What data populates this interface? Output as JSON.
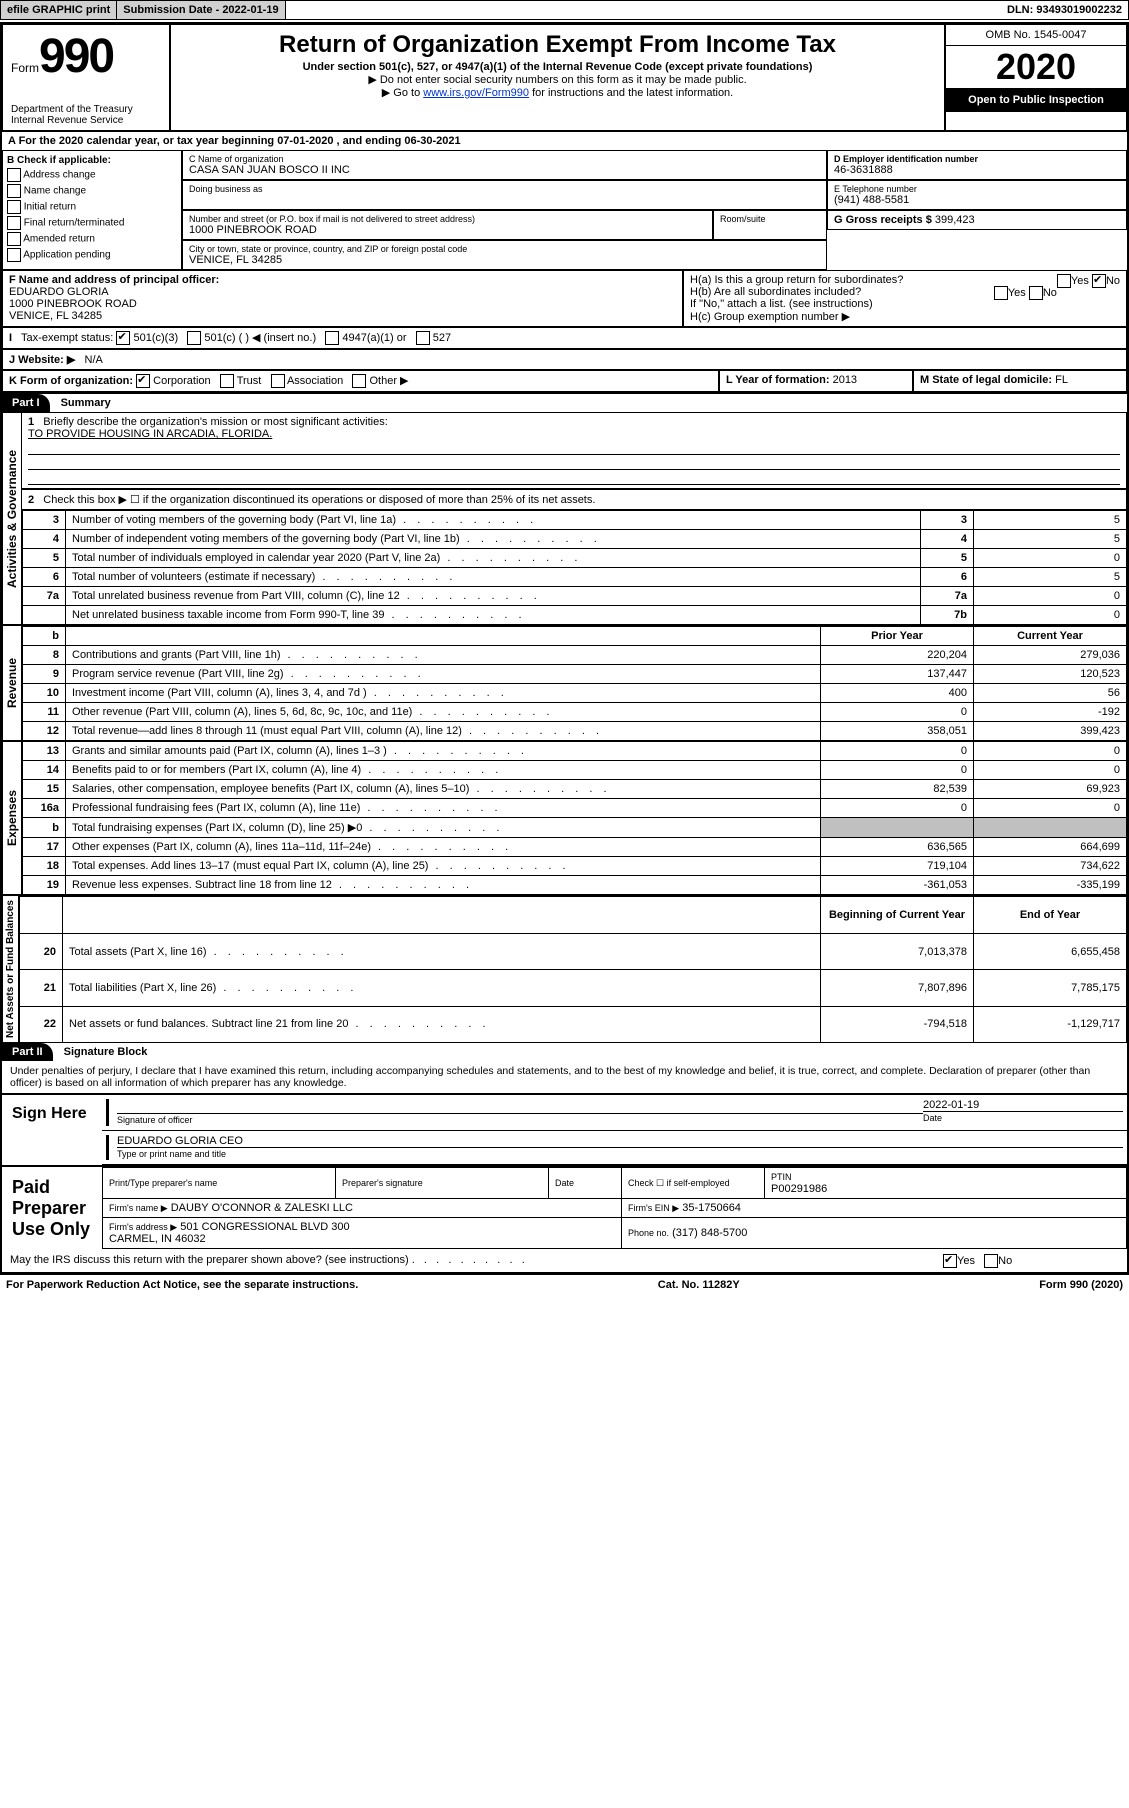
{
  "topbar": {
    "efile": "efile GRAPHIC print",
    "submission": "Submission Date - 2022-01-19",
    "dln": "DLN: 93493019002232"
  },
  "header": {
    "form_label": "Form",
    "form_num": "990",
    "title": "Return of Organization Exempt From Income Tax",
    "subtitle": "Under section 501(c), 527, or 4947(a)(1) of the Internal Revenue Code (except private foundations)",
    "note1": "▶ Do not enter social security numbers on this form as it may be made public.",
    "note2_pre": "▶ Go to ",
    "note2_link": "www.irs.gov/Form990",
    "note2_post": " for instructions and the latest information.",
    "dept": "Department of the Treasury\nInternal Revenue Service",
    "omb": "OMB No. 1545-0047",
    "year": "2020",
    "open": "Open to Public Inspection"
  },
  "sectionA": "A For the 2020 calendar year, or tax year beginning 07-01-2020    , and ending 06-30-2021",
  "checkif": {
    "label": "B Check if applicable:",
    "items": [
      "Address change",
      "Name change",
      "Initial return",
      "Final return/terminated",
      "Amended return",
      "Application pending"
    ]
  },
  "org": {
    "name_label": "C Name of organization",
    "name": "CASA SAN JUAN BOSCO II INC",
    "dba_label": "Doing business as",
    "addr_label": "Number and street (or P.O. box if mail is not delivered to street address)",
    "addr": "1000 PINEBROOK ROAD",
    "room_label": "Room/suite",
    "city_label": "City or town, state or province, country, and ZIP or foreign postal code",
    "city": "VENICE, FL  34285"
  },
  "ein": {
    "label": "D Employer identification number",
    "value": "46-3631888"
  },
  "phone": {
    "label": "E Telephone number",
    "value": "(941) 488-5581"
  },
  "gross": {
    "label": "G Gross receipts $",
    "value": "399,423"
  },
  "officer": {
    "label": "F  Name and address of principal officer:",
    "name": "EDUARDO GLORIA",
    "addr": "1000 PINEBROOK ROAD\nVENICE, FL  34285"
  },
  "groupH": {
    "ha": "H(a)  Is this a group return for subordinates?",
    "hb": "H(b)  Are all subordinates included?",
    "hb_note": "If \"No,\" attach a list. (see instructions)",
    "hc": "H(c)  Group exemption number ▶",
    "yes": "Yes",
    "no": "No"
  },
  "taxexempt": {
    "label": "Tax-exempt status:",
    "o1": "501(c)(3)",
    "o2": "501(c) (   ) ◀ (insert no.)",
    "o3": "4947(a)(1) or",
    "o4": "527"
  },
  "website": {
    "label": "J   Website: ▶",
    "value": "N/A"
  },
  "formorg": {
    "label": "K Form of organization:",
    "corp": "Corporation",
    "trust": "Trust",
    "assoc": "Association",
    "other": "Other ▶"
  },
  "yearformed": {
    "label": "L Year of formation:",
    "value": "2013"
  },
  "domicile": {
    "label": "M State of legal domicile:",
    "value": "FL"
  },
  "part1": {
    "header": "Part I",
    "title": "Summary",
    "side_gov": "Activities & Governance",
    "side_rev": "Revenue",
    "side_exp": "Expenses",
    "side_net": "Net Assets or Fund Balances",
    "line1": "Briefly describe the organization's mission or most significant activities:",
    "mission": "TO PROVIDE HOUSING IN ARCADIA, FLORIDA.",
    "line2": "Check this box ▶ ☐  if the organization discontinued its operations or disposed of more than 25% of its net assets.",
    "col_prior": "Prior Year",
    "col_current": "Current Year",
    "col_begin": "Beginning of Current Year",
    "col_end": "End of Year",
    "rows_gov": [
      {
        "n": "3",
        "t": "Number of voting members of the governing body (Part VI, line 1a)",
        "rn": "3",
        "v": "5"
      },
      {
        "n": "4",
        "t": "Number of independent voting members of the governing body (Part VI, line 1b)",
        "rn": "4",
        "v": "5"
      },
      {
        "n": "5",
        "t": "Total number of individuals employed in calendar year 2020 (Part V, line 2a)",
        "rn": "5",
        "v": "0"
      },
      {
        "n": "6",
        "t": "Total number of volunteers (estimate if necessary)",
        "rn": "6",
        "v": "5"
      },
      {
        "n": "7a",
        "t": "Total unrelated business revenue from Part VIII, column (C), line 12",
        "rn": "7a",
        "v": "0"
      },
      {
        "n": "",
        "t": "Net unrelated business taxable income from Form 990-T, line 39",
        "rn": "7b",
        "v": "0"
      }
    ],
    "rows_rev": [
      {
        "n": "8",
        "t": "Contributions and grants (Part VIII, line 1h)",
        "p": "220,204",
        "c": "279,036"
      },
      {
        "n": "9",
        "t": "Program service revenue (Part VIII, line 2g)",
        "p": "137,447",
        "c": "120,523"
      },
      {
        "n": "10",
        "t": "Investment income (Part VIII, column (A), lines 3, 4, and 7d )",
        "p": "400",
        "c": "56"
      },
      {
        "n": "11",
        "t": "Other revenue (Part VIII, column (A), lines 5, 6d, 8c, 9c, 10c, and 11e)",
        "p": "0",
        "c": "-192"
      },
      {
        "n": "12",
        "t": "Total revenue—add lines 8 through 11 (must equal Part VIII, column (A), line 12)",
        "p": "358,051",
        "c": "399,423"
      }
    ],
    "rows_exp": [
      {
        "n": "13",
        "t": "Grants and similar amounts paid (Part IX, column (A), lines 1–3 )",
        "p": "0",
        "c": "0"
      },
      {
        "n": "14",
        "t": "Benefits paid to or for members (Part IX, column (A), line 4)",
        "p": "0",
        "c": "0"
      },
      {
        "n": "15",
        "t": "Salaries, other compensation, employee benefits (Part IX, column (A), lines 5–10)",
        "p": "82,539",
        "c": "69,923"
      },
      {
        "n": "16a",
        "t": "Professional fundraising fees (Part IX, column (A), line 11e)",
        "p": "0",
        "c": "0"
      },
      {
        "n": "b",
        "t": "Total fundraising expenses (Part IX, column (D), line 25) ▶0",
        "p": "",
        "c": "",
        "gray": true
      },
      {
        "n": "17",
        "t": "Other expenses (Part IX, column (A), lines 11a–11d, 11f–24e)",
        "p": "636,565",
        "c": "664,699"
      },
      {
        "n": "18",
        "t": "Total expenses. Add lines 13–17 (must equal Part IX, column (A), line 25)",
        "p": "719,104",
        "c": "734,622"
      },
      {
        "n": "19",
        "t": "Revenue less expenses. Subtract line 18 from line 12",
        "p": "-361,053",
        "c": "-335,199"
      }
    ],
    "rows_net": [
      {
        "n": "20",
        "t": "Total assets (Part X, line 16)",
        "p": "7,013,378",
        "c": "6,655,458"
      },
      {
        "n": "21",
        "t": "Total liabilities (Part X, line 26)",
        "p": "7,807,896",
        "c": "7,785,175"
      },
      {
        "n": "22",
        "t": "Net assets or fund balances. Subtract line 21 from line 20",
        "p": "-794,518",
        "c": "-1,129,717"
      }
    ]
  },
  "part2": {
    "header": "Part II",
    "title": "Signature Block",
    "perjury": "Under penalties of perjury, I declare that I have examined this return, including accompanying schedules and statements, and to the best of my knowledge and belief, it is true, correct, and complete. Declaration of preparer (other than officer) is based on all information of which preparer has any knowledge.",
    "sign_here": "Sign Here",
    "sig_officer": "Signature of officer",
    "date": "Date",
    "date_val": "2022-01-19",
    "name_title": "EDUARDO GLORIA CEO",
    "name_title_label": "Type or print name and title",
    "paid": "Paid Preparer Use Only",
    "prep_name_label": "Print/Type preparer's name",
    "prep_sig_label": "Preparer's signature",
    "check_self": "Check ☐ if self-employed",
    "ptin_label": "PTIN",
    "ptin": "P00291986",
    "firm_name_label": "Firm's name     ▶",
    "firm_name": "DAUBY O'CONNOR & ZALESKI LLC",
    "firm_ein_label": "Firm's EIN ▶",
    "firm_ein": "35-1750664",
    "firm_addr_label": "Firm's address ▶",
    "firm_addr": "501 CONGRESSIONAL BLVD 300\nCARMEL, IN  46032",
    "firm_phone_label": "Phone no.",
    "firm_phone": "(317) 848-5700",
    "discuss": "May the IRS discuss this return with the preparer shown above? (see instructions)"
  },
  "footer": {
    "left": "For Paperwork Reduction Act Notice, see the separate instructions.",
    "mid": "Cat. No. 11282Y",
    "right": "Form 990 (2020)"
  }
}
